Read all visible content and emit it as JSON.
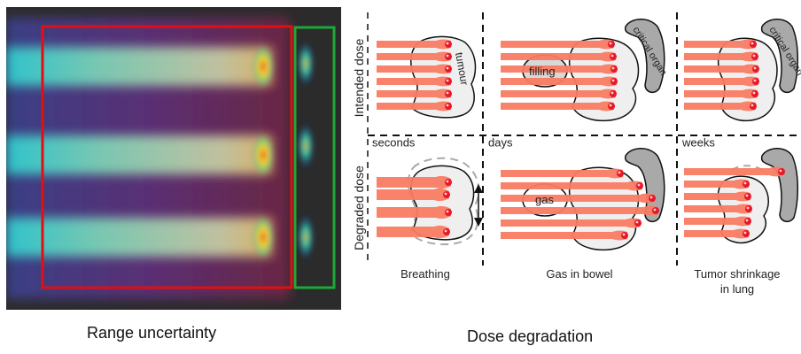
{
  "left_panel": {
    "caption": "Range uncertainty",
    "colors": {
      "background": "#2b2b2b",
      "uncertain_box": "#e01010",
      "distal_box": "#1fa83a"
    }
  },
  "right_panel": {
    "caption": "Dose degradation",
    "row_labels": [
      "Intended dose",
      "Degraded dose"
    ],
    "time_scales": [
      "seconds",
      "days",
      "weeks"
    ],
    "column_labels": [
      "Breathing",
      "Gas in bowel",
      "Tumor shrinkage\nin lung"
    ],
    "annotations": {
      "tumour": "tumour",
      "filling": "filling",
      "critical_organ": "critical organ",
      "gas": "gas"
    },
    "colors": {
      "beam": "#f97b63",
      "beam_tip": "#e8182a",
      "organ": "#a9a9a9",
      "tumour_fill": "#efefef"
    }
  }
}
